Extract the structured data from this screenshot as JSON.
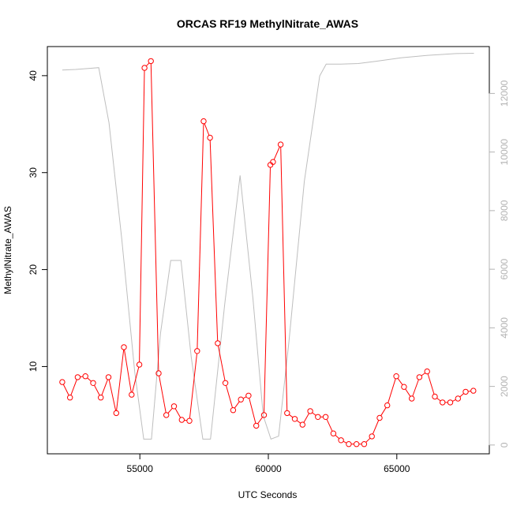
{
  "chart_data": {
    "type": "line",
    "title": "ORCAS RF19 MethylNitrate_AWAS",
    "xlabel": "UTC Seconds",
    "ylabel": "MethylNitrate_AWAS",
    "y2label": "",
    "xlim": [
      51400,
      68600
    ],
    "ylim": [
      1.0,
      43.0
    ],
    "y2lim": [
      -300,
      13600
    ],
    "xticks": [
      55000,
      60000,
      65000
    ],
    "yticks": [
      10,
      20,
      30,
      40
    ],
    "y2ticks": [
      0,
      2000,
      4000,
      6000,
      8000,
      10000,
      12000
    ],
    "grid": false,
    "colors": {
      "primary": "#ff0000",
      "secondary": "#bebebe",
      "axis": "#000000",
      "secondary_axis": "#b3b3b3"
    },
    "series": [
      {
        "axis": "left",
        "style": "line+points",
        "color": "#ff0000",
        "x": [
          51980,
          52280,
          52580,
          52880,
          53180,
          53480,
          53780,
          54080,
          54380,
          54680,
          54980,
          55180,
          55430,
          55730,
          56030,
          56330,
          56630,
          56930,
          57230,
          57480,
          57730,
          58030,
          58330,
          58630,
          58930,
          59230,
          59530,
          59830,
          60080,
          60180,
          60480,
          60730,
          61030,
          61330,
          61630,
          61930,
          62230,
          62530,
          62830,
          63130,
          63430,
          63730,
          64030,
          64330,
          64630,
          64980,
          65280,
          65580,
          65880,
          66180,
          66480,
          66780,
          67080,
          67380,
          67680,
          67980
        ],
        "y": [
          8.4,
          6.8,
          8.9,
          9.0,
          8.3,
          6.8,
          8.9,
          5.2,
          12.0,
          7.1,
          10.2,
          40.8,
          41.5,
          9.3,
          5.0,
          5.9,
          4.5,
          4.4,
          11.6,
          35.3,
          33.6,
          12.4,
          8.3,
          5.5,
          6.6,
          7.0,
          3.9,
          5.0,
          30.8,
          31.1,
          32.9,
          5.2,
          4.6,
          4.0,
          5.4,
          4.8,
          4.8,
          3.1,
          2.4,
          2.0,
          2.0,
          2.0,
          2.8,
          4.7,
          6.0,
          9.0,
          7.9,
          6.7,
          8.9,
          9.5,
          6.9,
          6.3,
          6.3,
          6.7,
          7.4,
          7.5
        ]
      },
      {
        "axis": "right",
        "style": "line",
        "color": "#bebebe",
        "x": [
          51980,
          52500,
          53000,
          53400,
          53800,
          54300,
          54800,
          55150,
          55450,
          55800,
          56200,
          56600,
          57000,
          57450,
          57750,
          58300,
          58900,
          59400,
          59800,
          60100,
          60400,
          60800,
          61400,
          62000,
          62250,
          62800,
          63500,
          64200,
          65200,
          66200,
          67300,
          68000
        ],
        "y": [
          12800,
          12820,
          12850,
          12880,
          11000,
          7000,
          2500,
          200,
          200,
          3800,
          6300,
          6300,
          3000,
          200,
          200,
          4800,
          9200,
          5000,
          1000,
          200,
          300,
          3500,
          9000,
          12600,
          13000,
          13000,
          13020,
          13100,
          13220,
          13300,
          13360,
          13370
        ]
      }
    ]
  }
}
